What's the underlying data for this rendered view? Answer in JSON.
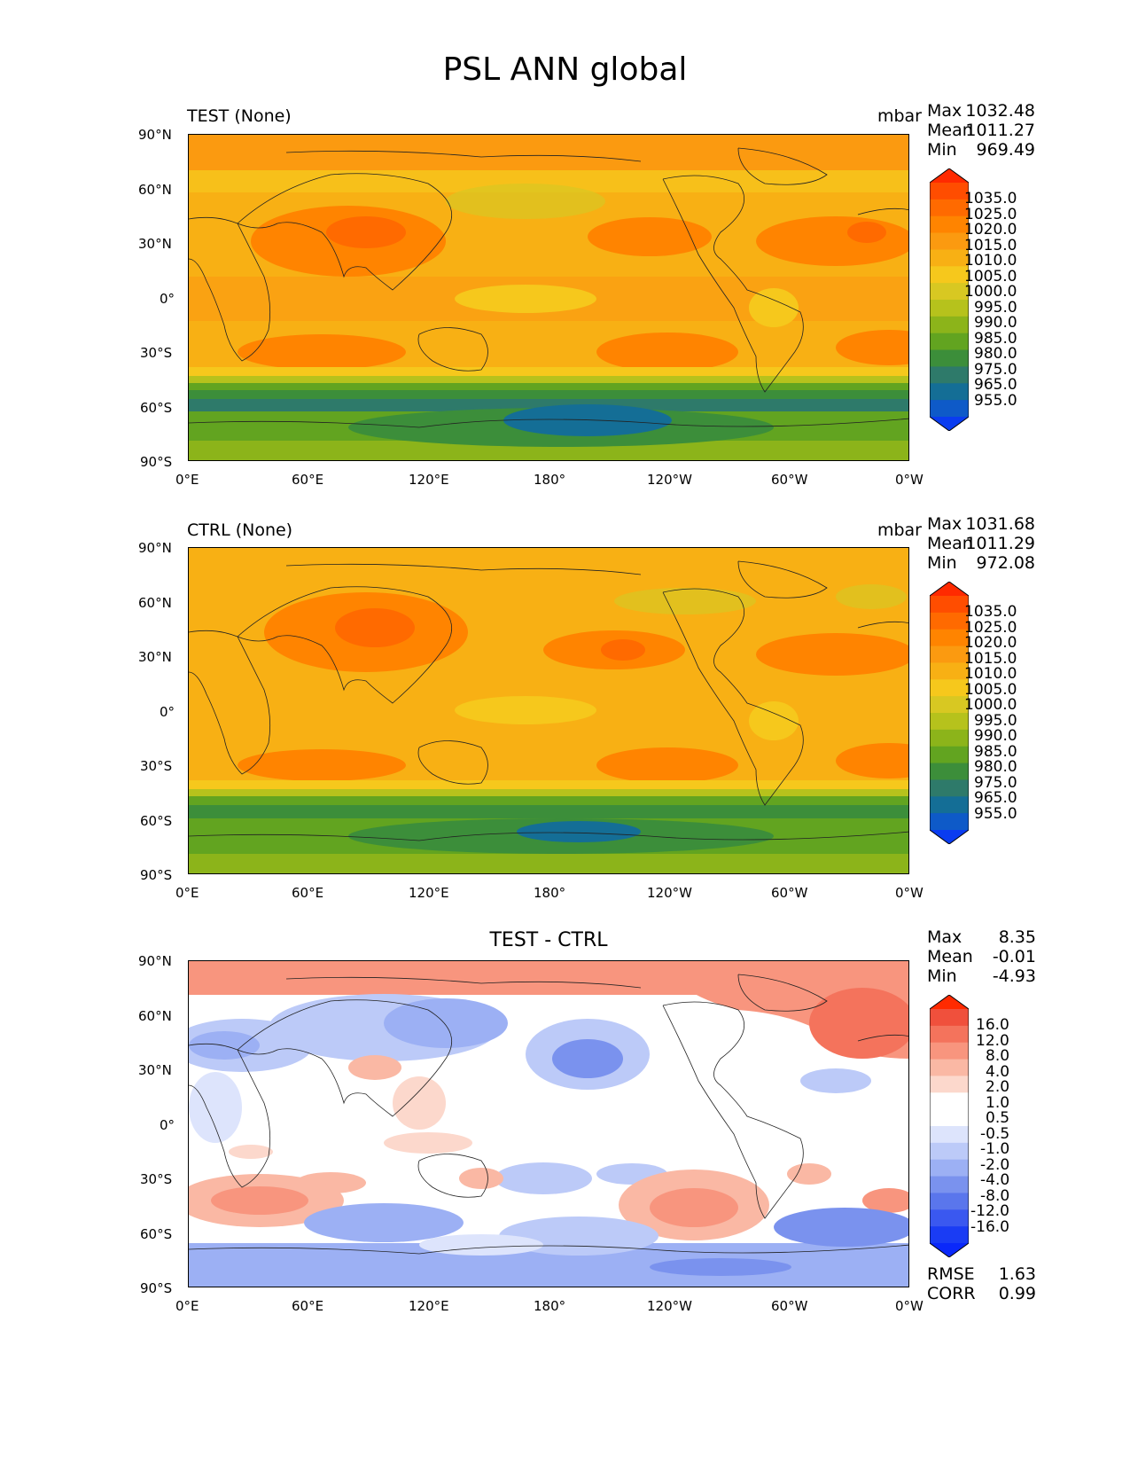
{
  "figure": {
    "title": "PSL ANN global"
  },
  "axes": {
    "lon_ticks": [
      "0°E",
      "60°E",
      "120°E",
      "180°",
      "120°W",
      "60°W",
      "0°W"
    ],
    "lat_ticks": [
      "90°N",
      "60°N",
      "30°N",
      "0°",
      "30°S",
      "60°S",
      "90°S"
    ]
  },
  "panels": [
    {
      "id": "test",
      "title": "TEST (None)",
      "units": "mbar",
      "stats": [
        {
          "label": "Max",
          "value": "1032.48"
        },
        {
          "label": "Mean",
          "value": "1011.27"
        },
        {
          "label": "Min",
          "value": "969.49"
        }
      ],
      "colorbar_levels": [
        "1035.0",
        "1025.0",
        "1020.0",
        "1015.0",
        "1010.0",
        "1005.0",
        "1000.0",
        "995.0",
        "990.0",
        "985.0",
        "980.0",
        "975.0",
        "965.0",
        "955.0"
      ]
    },
    {
      "id": "ctrl",
      "title": "CTRL (None)",
      "units": "mbar",
      "stats": [
        {
          "label": "Max",
          "value": "1031.68"
        },
        {
          "label": "Mean",
          "value": "1011.29"
        },
        {
          "label": "Min",
          "value": "972.08"
        }
      ],
      "colorbar_levels": [
        "1035.0",
        "1025.0",
        "1020.0",
        "1015.0",
        "1010.0",
        "1005.0",
        "1000.0",
        "995.0",
        "990.0",
        "985.0",
        "980.0",
        "975.0",
        "965.0",
        "955.0"
      ]
    },
    {
      "id": "diff",
      "title": "TEST - CTRL",
      "stats": [
        {
          "label": "Max",
          "value": "8.35"
        },
        {
          "label": "Mean",
          "value": "-0.01"
        },
        {
          "label": "Min",
          "value": "-4.93"
        }
      ],
      "colorbar_levels": [
        "16.0",
        "12.0",
        "8.0",
        "4.0",
        "2.0",
        "1.0",
        "0.5",
        "-0.5",
        "-1.0",
        "-2.0",
        "-4.0",
        "-8.0",
        "-12.0",
        "-16.0"
      ],
      "metrics": [
        {
          "label": "RMSE",
          "value": "1.63"
        },
        {
          "label": "CORR",
          "value": "0.99"
        }
      ]
    }
  ],
  "colors": {
    "psl_ramp": [
      "#ff2a00",
      "#ff4d00",
      "#ff6a00",
      "#ff8400",
      "#fb9a10",
      "#f8b014",
      "#f6c81c",
      "#d8c822",
      "#b6c21c",
      "#8cb41a",
      "#62a420",
      "#3c8e3a",
      "#2e7a6a",
      "#146e96",
      "#0e5ac8",
      "#0a3cf0"
    ],
    "diff_ramp": [
      "#ff2a00",
      "#f0503c",
      "#f4735c",
      "#f8957e",
      "#fab8a4",
      "#fcd8cc",
      "#ffffff",
      "#ffffff",
      "#dde4fc",
      "#bccaf8",
      "#9cb0f4",
      "#7a92ee",
      "#5a76ec",
      "#3a58f0",
      "#1a3cf4",
      "#0a28fa"
    ]
  },
  "chart_data": [
    {
      "type": "heatmap",
      "title": "TEST (None)",
      "units": "mbar",
      "x_range_deg_east": [
        0,
        360
      ],
      "y_range_deg_north": [
        -90,
        90
      ],
      "max": 1032.48,
      "mean": 1011.27,
      "min": 969.49,
      "contour_levels": [
        955,
        965,
        975,
        980,
        985,
        990,
        995,
        1000,
        1005,
        1010,
        1015,
        1020,
        1025,
        1035
      ]
    },
    {
      "type": "heatmap",
      "title": "CTRL (None)",
      "units": "mbar",
      "x_range_deg_east": [
        0,
        360
      ],
      "y_range_deg_north": [
        -90,
        90
      ],
      "max": 1031.68,
      "mean": 1011.29,
      "min": 972.08,
      "contour_levels": [
        955,
        965,
        975,
        980,
        985,
        990,
        995,
        1000,
        1005,
        1010,
        1015,
        1020,
        1025,
        1035
      ]
    },
    {
      "type": "heatmap",
      "title": "TEST - CTRL",
      "x_range_deg_east": [
        0,
        360
      ],
      "y_range_deg_north": [
        -90,
        90
      ],
      "max": 8.35,
      "mean": -0.01,
      "min": -4.93,
      "rmse": 1.63,
      "corr": 0.99,
      "contour_levels": [
        -16,
        -12,
        -8,
        -4,
        -2,
        -1,
        -0.5,
        0.5,
        1,
        2,
        4,
        8,
        12,
        16
      ]
    }
  ]
}
